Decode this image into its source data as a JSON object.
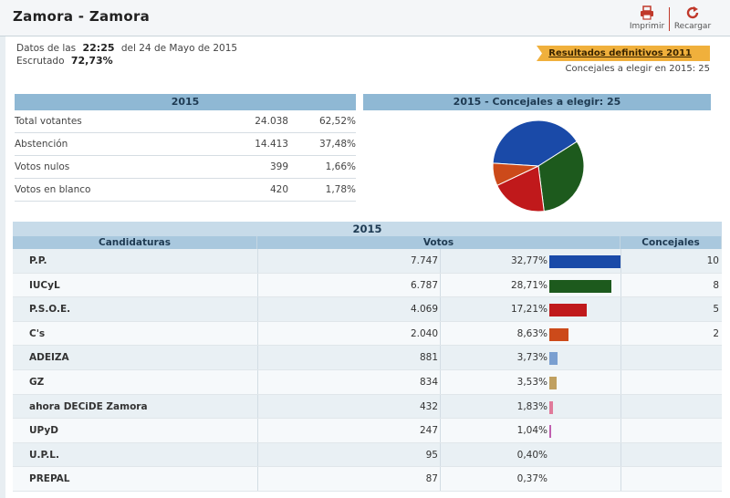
{
  "header": {
    "title": "Zamora - Zamora",
    "print_label": "Imprimir",
    "reload_label": "Recargar",
    "print_icon": "printer-icon",
    "reload_icon": "reload-icon"
  },
  "info": {
    "date_prefix": "Datos de las",
    "time": "22:25",
    "date_suffix": "del 24 de Mayo de 2015",
    "escrutado_label": "Escrutado",
    "escrutado_value": "72,73%",
    "results_2011_link": "Resultados definitivos 2011",
    "concejales_text": "Concejales a elegir en 2015: 25"
  },
  "summary": {
    "title": "2015",
    "rows": [
      {
        "label": "Total votantes",
        "value": "24.038",
        "pct": "62,52%"
      },
      {
        "label": "Abstención",
        "value": "14.413",
        "pct": "37,48%"
      },
      {
        "label": "Votos nulos",
        "value": "399",
        "pct": "1,66%"
      },
      {
        "label": "Votos en blanco",
        "value": "420",
        "pct": "1,78%"
      }
    ]
  },
  "pie": {
    "title": "2015 - Concejales a elegir: 25"
  },
  "chart_data": {
    "type": "pie",
    "title": "2015 - Concejales a elegir: 25",
    "categories": [
      "P.P.",
      "IUCyL",
      "P.S.O.E.",
      "C's"
    ],
    "values": [
      10,
      8,
      5,
      2
    ],
    "colors": [
      "#1a4aa8",
      "#1d5a1d",
      "#c0191b",
      "#cc4a1a"
    ]
  },
  "results": {
    "title": "2015",
    "columns": {
      "candidaturas": "Candidaturas",
      "votos": "Votos",
      "concejales": "Concejales"
    },
    "rows": [
      {
        "name": "P.P.",
        "votes": "7.747",
        "pct": "32,77%",
        "share": 32.77,
        "seats": "10",
        "color": "#1a4aa8"
      },
      {
        "name": "IUCyL",
        "votes": "6.787",
        "pct": "28,71%",
        "share": 28.71,
        "seats": "8",
        "color": "#1d5a1d"
      },
      {
        "name": "P.S.O.E.",
        "votes": "4.069",
        "pct": "17,21%",
        "share": 17.21,
        "seats": "5",
        "color": "#c0191b"
      },
      {
        "name": "C's",
        "votes": "2.040",
        "pct": "8,63%",
        "share": 8.63,
        "seats": "2",
        "color": "#cc4a1a"
      },
      {
        "name": "ADEIZA",
        "votes": "881",
        "pct": "3,73%",
        "share": 3.73,
        "seats": "",
        "color": "#7a9fd0"
      },
      {
        "name": "GZ",
        "votes": "834",
        "pct": "3,53%",
        "share": 3.53,
        "seats": "",
        "color": "#c0a060"
      },
      {
        "name": "ahora DECiDE Zamora",
        "votes": "432",
        "pct": "1,83%",
        "share": 1.83,
        "seats": "",
        "color": "#e07a9a"
      },
      {
        "name": "UPyD",
        "votes": "247",
        "pct": "1,04%",
        "share": 1.04,
        "seats": "",
        "color": "#c060b0"
      },
      {
        "name": "U.P.L.",
        "votes": "95",
        "pct": "0,40%",
        "share": 0.4,
        "seats": "",
        "color": "#d0d0d0"
      },
      {
        "name": "PREPAL",
        "votes": "87",
        "pct": "0,37%",
        "share": 0.37,
        "seats": "",
        "color": "#d0d0d0"
      }
    ]
  }
}
